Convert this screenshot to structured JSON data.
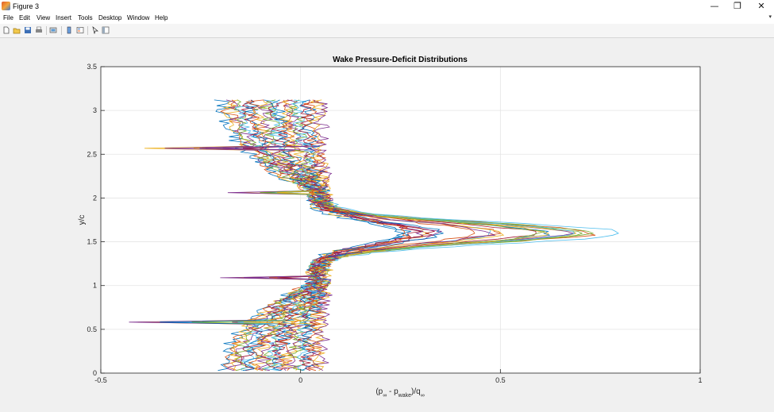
{
  "window": {
    "title": "Figure 3",
    "minimize_glyph": "—",
    "maximize_glyph": "❐",
    "close_glyph": "✕"
  },
  "menu": {
    "items": [
      "File",
      "Edit",
      "View",
      "Insert",
      "Tools",
      "Desktop",
      "Window",
      "Help"
    ],
    "overflow_glyph": "▾"
  },
  "toolbar": {
    "icons": [
      "new-figure-icon",
      "open-file-icon",
      "save-icon",
      "print-icon",
      "link-plot-icon",
      "insert-colorbar-icon",
      "insert-legend-icon",
      "pointer-icon",
      "property-inspector-icon"
    ]
  },
  "chart_data": {
    "type": "line",
    "title": "Wake Pressure-Deficit Distributions",
    "xlabel": "(p∞ - pwake)/q∞",
    "ylabel": "y/c",
    "xlim": [
      -0.5,
      1
    ],
    "ylim": [
      0,
      3.5
    ],
    "xticks": [
      "-0.5",
      "0",
      "0.5",
      "1"
    ],
    "yticks": [
      "0",
      "0.5",
      "1",
      "1.5",
      "2",
      "2.5",
      "3",
      "3.5"
    ],
    "grid": "on",
    "series_count": 25,
    "y_range": [
      0.03,
      3.12
    ],
    "upper_wake_peak": {
      "y": 1.6,
      "x_max": 0.82
    },
    "lower_wake_spike": {
      "y": 0.58,
      "x_min": -0.31
    },
    "colors": [
      "#0072BD",
      "#D95319",
      "#EDB120",
      "#7E2F8E",
      "#77AC30",
      "#4DBEEE",
      "#A2142F"
    ]
  }
}
